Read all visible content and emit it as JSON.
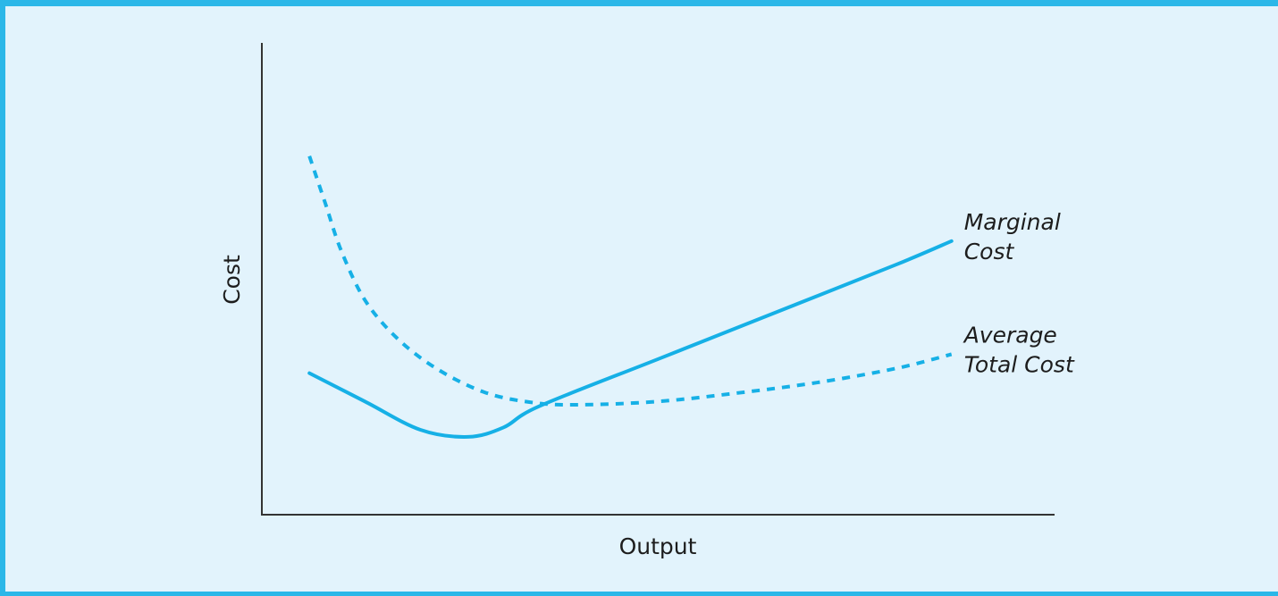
{
  "chart_data": {
    "type": "line",
    "title": "",
    "xlabel": "Output",
    "ylabel": "Cost",
    "xlim": [
      0,
      10
    ],
    "ylim": [
      0,
      10
    ],
    "grid": false,
    "legend": "inline-right",
    "colors": {
      "line": "#16b0e6",
      "axis": "#333333",
      "background": "#e2f3fc",
      "border": "#2bb7e8"
    },
    "series": [
      {
        "name": "Marginal Cost",
        "label_lines": [
          "Marginal",
          "Cost"
        ],
        "style": "solid",
        "points": [
          [
            0.6,
            3.0
          ],
          [
            1.3,
            2.4
          ],
          [
            2.0,
            1.8
          ],
          [
            2.6,
            1.65
          ],
          [
            3.05,
            1.85
          ],
          [
            3.5,
            2.3
          ],
          [
            5.0,
            3.3
          ],
          [
            6.5,
            4.3
          ],
          [
            8.0,
            5.3
          ],
          [
            8.7,
            5.8
          ]
        ]
      },
      {
        "name": "Average Total Cost",
        "label_lines": [
          "Average",
          "Total Cost"
        ],
        "style": "dashed",
        "points": [
          [
            0.6,
            7.6
          ],
          [
            0.8,
            6.6
          ],
          [
            1.0,
            5.6
          ],
          [
            1.3,
            4.55
          ],
          [
            1.7,
            3.75
          ],
          [
            2.2,
            3.1
          ],
          [
            2.8,
            2.6
          ],
          [
            3.4,
            2.38
          ],
          [
            4.0,
            2.33
          ],
          [
            5.0,
            2.4
          ],
          [
            6.0,
            2.58
          ],
          [
            7.0,
            2.8
          ],
          [
            8.0,
            3.1
          ],
          [
            8.7,
            3.4
          ]
        ]
      }
    ]
  }
}
